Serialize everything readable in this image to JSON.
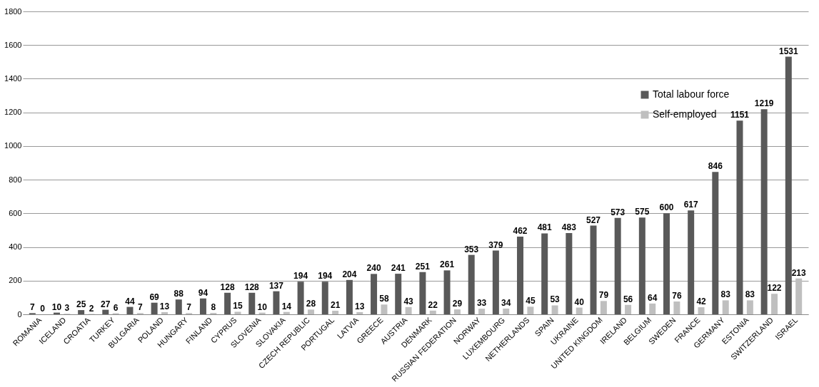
{
  "chart_data": {
    "type": "bar",
    "categories": [
      "ROMANIA",
      "ICELAND",
      "CROATIA",
      "TURKEY",
      "BULGARIA",
      "POLAND",
      "HUNGARY",
      "FINLAND",
      "CYPRUS",
      "SLOVENIA",
      "SLOVAKIA",
      "CZECH REPUBLIC",
      "PORTUGAL",
      "LATVIA",
      "GREECE",
      "AUSTRIA",
      "DENMARK",
      "RUSSIAN FEDERATION",
      "NORWAY",
      "LUXEMBOURG",
      "NETHERLANDS",
      "SPAIN",
      "UKRAINE",
      "UNITED KINGDOM",
      "IRELAND",
      "BELGIUM",
      "SWEDEN",
      "FRANCE",
      "GERMANY",
      "ESTONIA",
      "SWITZERLAND",
      "ISRAEL"
    ],
    "series": [
      {
        "name": "Total labour force",
        "color": "#595959",
        "values": [
          7,
          10,
          25,
          27,
          44,
          69,
          88,
          94,
          128,
          128,
          137,
          194,
          194,
          204,
          240,
          241,
          251,
          261,
          353,
          379,
          462,
          481,
          483,
          527,
          573,
          575,
          600,
          617,
          846,
          1151,
          1219,
          1531
        ]
      },
      {
        "name": "Self-employed",
        "color": "#bfbfbf",
        "values": [
          0,
          3,
          2,
          6,
          7,
          13,
          7,
          8,
          15,
          10,
          14,
          28,
          21,
          13,
          58,
          43,
          22,
          29,
          33,
          34,
          45,
          53,
          40,
          79,
          56,
          64,
          76,
          42,
          83,
          83,
          122,
          213
        ]
      }
    ],
    "ylim": [
      0,
      1800
    ],
    "yticks": [
      0,
      200,
      400,
      600,
      800,
      1000,
      1200,
      1400,
      1600,
      1800
    ],
    "grid": "y",
    "legend": "top right",
    "data_labels": true
  }
}
